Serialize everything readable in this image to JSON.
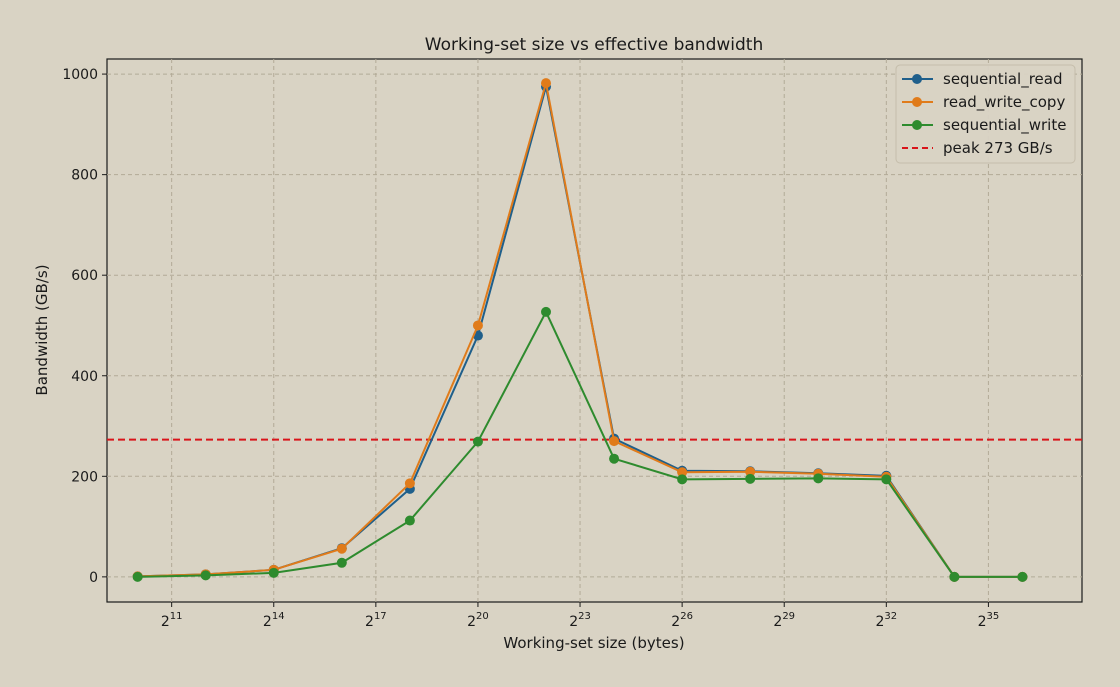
{
  "chart_data": {
    "type": "line",
    "title": "Working-set size vs effective bandwidth",
    "xlabel": "Working-set size (bytes)",
    "ylabel": "Bandwidth (GB/s)",
    "x_scale": "log2",
    "x_exponents": [
      10,
      12,
      14,
      16,
      18,
      20,
      22,
      24,
      26,
      28,
      30,
      32,
      34,
      36
    ],
    "x_tick_exponents": [
      "11",
      "14",
      "17",
      "20",
      "23",
      "26",
      "29",
      "32",
      "35"
    ],
    "xlim_exponent": [
      9.1,
      37.75
    ],
    "ylim": [
      -50,
      1030
    ],
    "y_ticks": [
      0,
      200,
      400,
      600,
      800,
      1000
    ],
    "grid": true,
    "legend_position": "top-right",
    "series": [
      {
        "name": "sequential_read",
        "color": "#1f5f8b",
        "values": [
          1,
          5,
          14,
          57,
          175,
          480,
          975,
          275,
          211,
          210,
          206,
          201,
          0,
          0
        ]
      },
      {
        "name": "read_write_copy",
        "color": "#e07b1a",
        "values": [
          1,
          5,
          14,
          56,
          186,
          500,
          982,
          270,
          208,
          209,
          205,
          199,
          0,
          0
        ]
      },
      {
        "name": "sequential_write",
        "color": "#2e8b2e",
        "values": [
          0,
          3,
          8,
          28,
          112,
          269,
          527,
          235,
          194,
          195,
          196,
          194,
          0,
          0
        ]
      }
    ],
    "reference_line": {
      "name": "peak 273 GB/s",
      "value": 273,
      "color": "#d9141a",
      "style": "dashed"
    }
  }
}
